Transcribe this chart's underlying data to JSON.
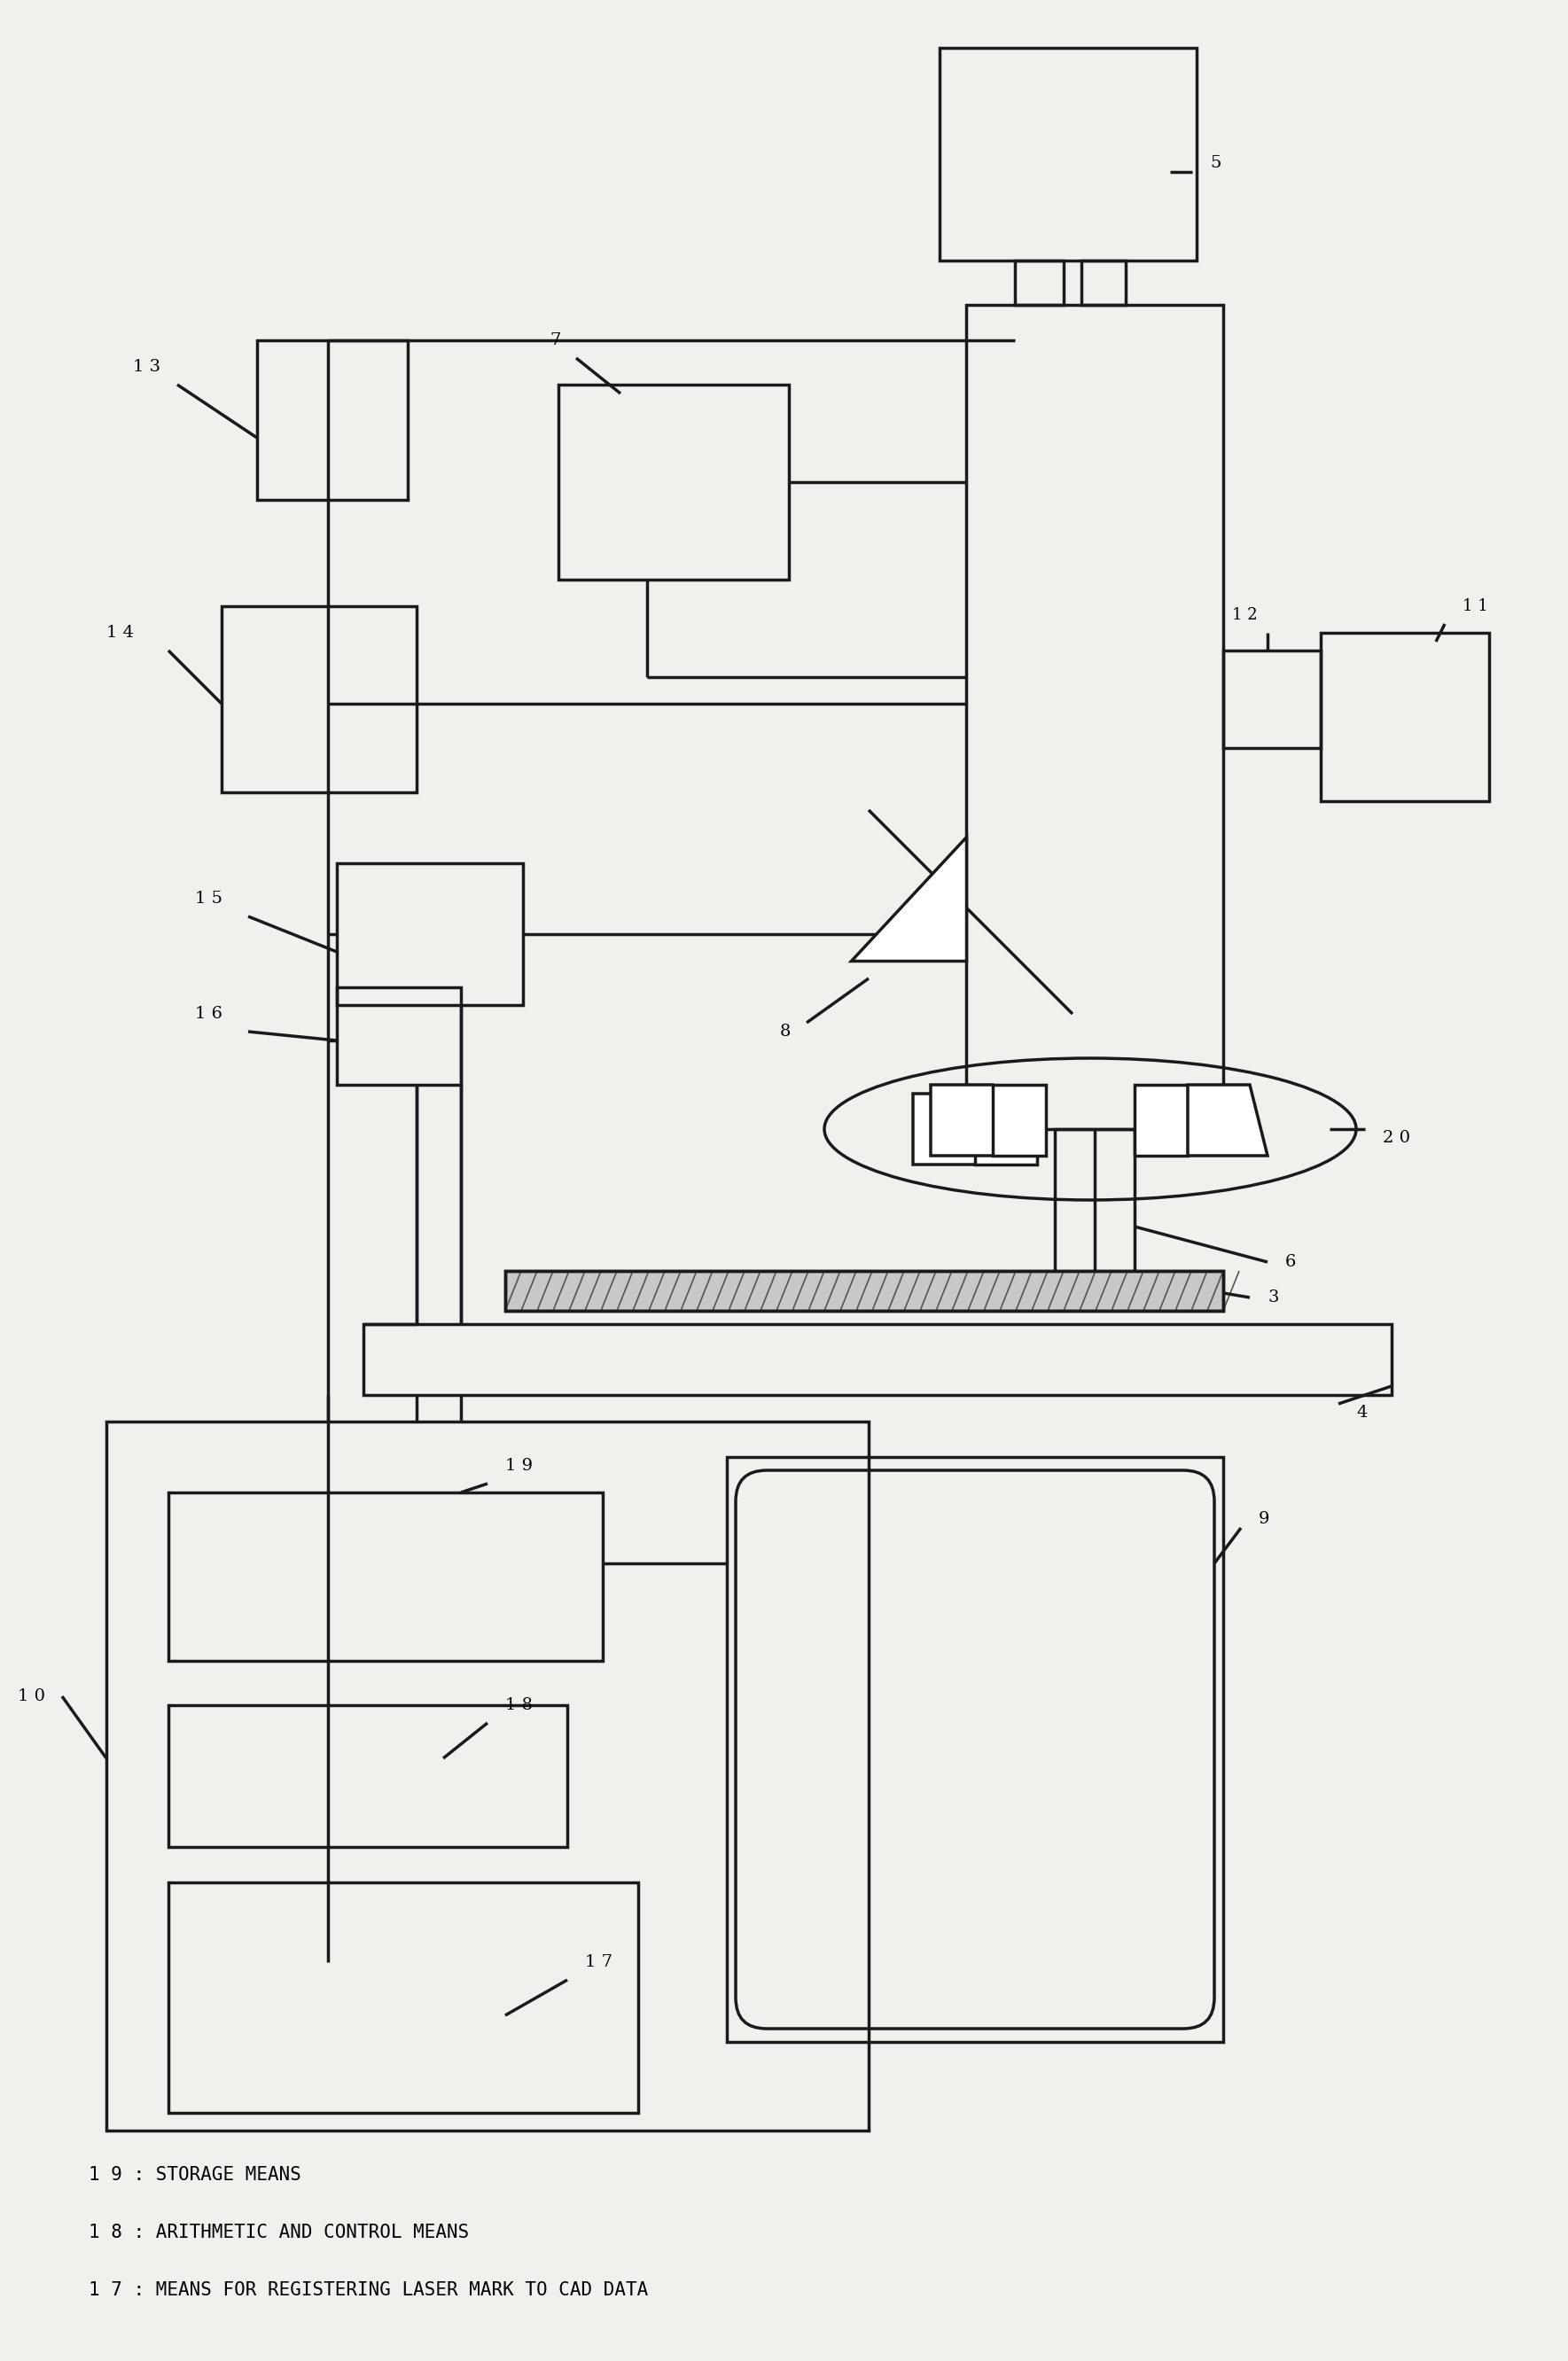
{
  "fig_width": 17.69,
  "fig_height": 26.64,
  "bg_color": "#f0f0ec",
  "lc": "#1a1a1a",
  "lw": 2.5,
  "legend": [
    "1 9 : STORAGE MEANS",
    "1 8 : ARITHMETIC AND CONTROL MEANS",
    "1 7 : MEANS FOR REGISTERING LASER MARK TO CAD DATA"
  ]
}
